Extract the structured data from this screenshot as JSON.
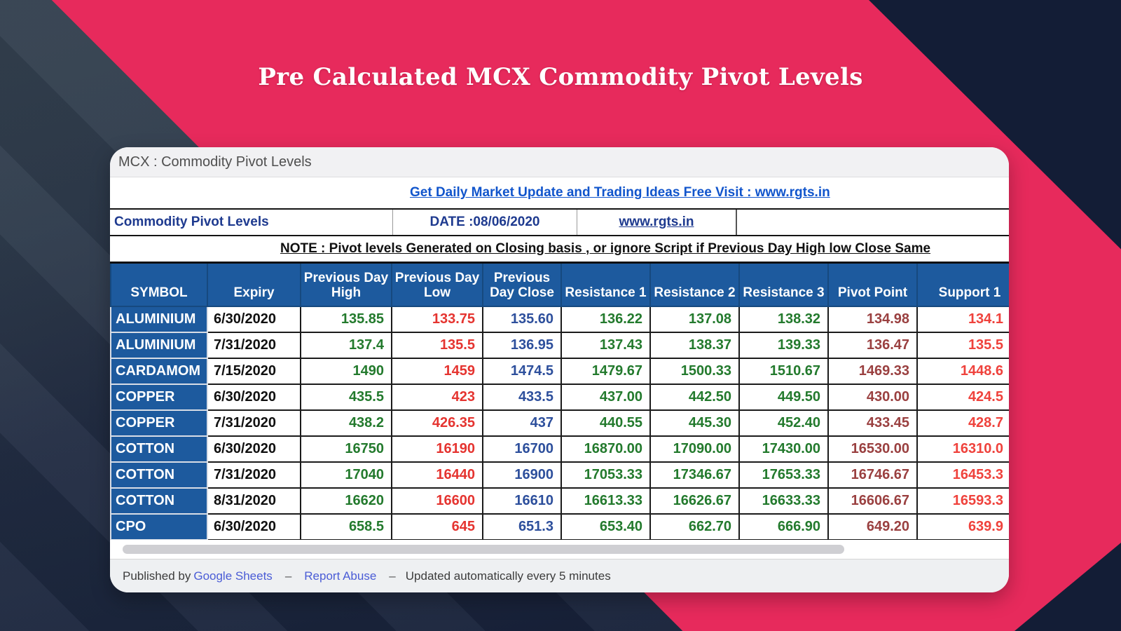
{
  "title": "Pre Calculated MCX Commodity Pivot Levels",
  "window": {
    "title": "MCX : Commodity Pivot Levels"
  },
  "sheet": {
    "banner_link": "Get Daily Market Update and Trading Ideas Free Visit : www.rgts.in",
    "info": {
      "label": "Commodity Pivot Levels",
      "date": "DATE :08/06/2020",
      "link": "www.rgts.in"
    },
    "note": "NOTE : Pivot levels Generated on Closing basis , or ignore Script if Previous Day High low Close Same"
  },
  "table": {
    "columns": [
      {
        "label": "SYMBOL",
        "class": "c-sym"
      },
      {
        "label": "Expiry",
        "class": "c-exp"
      },
      {
        "label": "Previous Day High",
        "class": "c-high"
      },
      {
        "label": "Previous Day Low",
        "class": "c-low"
      },
      {
        "label": "Previous Day Close",
        "class": "c-close"
      },
      {
        "label": "Resistance 1",
        "class": "c-res"
      },
      {
        "label": "Resistance 2",
        "class": "c-res"
      },
      {
        "label": "Resistance 3",
        "class": "c-res"
      },
      {
        "label": "Pivot Point",
        "class": "c-pivot"
      },
      {
        "label": "Support 1",
        "class": "c-support"
      }
    ],
    "rows": [
      [
        "ALUMINIUM",
        "6/30/2020",
        "135.85",
        "133.75",
        "135.60",
        "136.22",
        "137.08",
        "138.32",
        "134.98",
        "134.1"
      ],
      [
        "ALUMINIUM",
        "7/31/2020",
        "137.4",
        "135.5",
        "136.95",
        "137.43",
        "138.37",
        "139.33",
        "136.47",
        "135.5"
      ],
      [
        "CARDAMOM",
        "7/15/2020",
        "1490",
        "1459",
        "1474.5",
        "1479.67",
        "1500.33",
        "1510.67",
        "1469.33",
        "1448.6"
      ],
      [
        "COPPER",
        "6/30/2020",
        "435.5",
        "423",
        "433.5",
        "437.00",
        "442.50",
        "449.50",
        "430.00",
        "424.5"
      ],
      [
        "COPPER",
        "7/31/2020",
        "438.2",
        "426.35",
        "437",
        "440.55",
        "445.30",
        "452.40",
        "433.45",
        "428.7"
      ],
      [
        "COTTON",
        "6/30/2020",
        "16750",
        "16190",
        "16700",
        "16870.00",
        "17090.00",
        "17430.00",
        "16530.00",
        "16310.0"
      ],
      [
        "COTTON",
        "7/31/2020",
        "17040",
        "16440",
        "16900",
        "17053.33",
        "17346.67",
        "17653.33",
        "16746.67",
        "16453.3"
      ],
      [
        "COTTON",
        "8/31/2020",
        "16620",
        "16600",
        "16610",
        "16613.33",
        "16626.67",
        "16633.33",
        "16606.67",
        "16593.3"
      ],
      [
        "CPO",
        "6/30/2020",
        "658.5",
        "645",
        "651.3",
        "653.40",
        "662.70",
        "666.90",
        "649.20",
        "639.9"
      ]
    ]
  },
  "footer": {
    "published_by": "Published by",
    "google_sheets": "Google Sheets",
    "dash": "–",
    "report_abuse": "Report Abuse",
    "updated": "Updated automatically every 5 minutes"
  },
  "colors": {
    "pink": "#e72a5c",
    "navy_left": "#33404f",
    "navy_dark": "#131d36",
    "header_blue": "#1d5a9e",
    "green": "#237a2d",
    "red_low": "#e53430",
    "red_support": "#ef423c",
    "blue_close": "#2d4f9c",
    "maroon_pivot": "#9a4040",
    "info_blue": "#1e3a8f",
    "link_blue": "#1155cc",
    "footer_link": "#4a5cd6"
  }
}
